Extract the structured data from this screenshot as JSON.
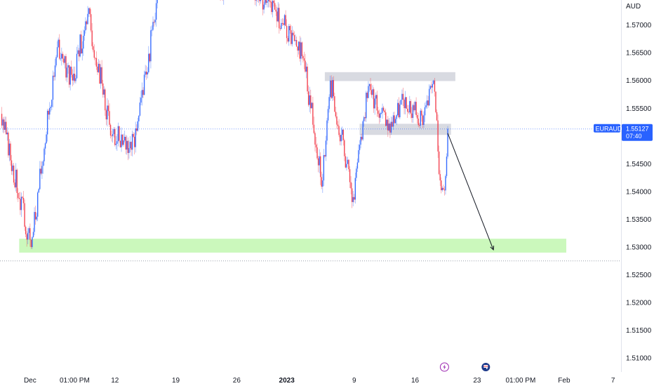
{
  "chart_data": {
    "type": "candlestick",
    "symbol": "EURAUD",
    "currency": "AUD",
    "ylim": [
      1.5075,
      1.5745
    ],
    "y_ticks": [
      "1.57000",
      "1.56500",
      "1.56000",
      "1.55500",
      "1.55000",
      "1.54500",
      "1.54000",
      "1.53500",
      "1.53000",
      "1.52500",
      "1.52000",
      "1.51500",
      "1.51000"
    ],
    "x_ticks": [
      {
        "label": "Dec",
        "bar": 27,
        "bold": false
      },
      {
        "label": "01:00 PM",
        "bar": 68,
        "bold": false
      },
      {
        "label": "12",
        "bar": 105,
        "bold": false
      },
      {
        "label": "19",
        "bar": 161,
        "bold": false
      },
      {
        "label": "26",
        "bar": 217,
        "bold": false
      },
      {
        "label": "2023",
        "bar": 263,
        "bold": true
      },
      {
        "label": "9",
        "bar": 325,
        "bold": false
      },
      {
        "label": "16",
        "bar": 381,
        "bold": false
      },
      {
        "label": "23",
        "bar": 438,
        "bold": false
      },
      {
        "label": "01:00 PM",
        "bar": 478,
        "bold": false
      },
      {
        "label": "Feb",
        "bar": 518,
        "bold": false
      },
      {
        "label": "7",
        "bar": 563,
        "bold": false
      }
    ],
    "last_price": {
      "label": "EURAUD",
      "value": 1.55127,
      "display": "1.55127",
      "countdown": "07:40"
    },
    "support_line": 1.5275,
    "zones": [
      {
        "name": "resistance-zone",
        "from_bar": 298,
        "to_bar": 418,
        "low": 1.5599,
        "high": 1.5615,
        "color": "#d1d4dc"
      },
      {
        "name": "mid-zone",
        "from_bar": 330,
        "to_bar": 414,
        "low": 1.5502,
        "high": 1.5522,
        "color": "#d1d4dc"
      },
      {
        "name": "target-zone",
        "from_bar": 17,
        "to_bar": 520,
        "low": 1.529,
        "high": 1.5315,
        "color": "#b9f6a6"
      }
    ],
    "arrow": {
      "from_bar": 411,
      "from_price": 1.5505,
      "to_bar": 453,
      "to_price": 1.5295
    },
    "events": [
      {
        "bar": 408,
        "icon": "lightning-icon",
        "color": "#9c27b0"
      },
      {
        "bar": 446,
        "icon": "flag-icon",
        "color": "#1e3a8a"
      }
    ],
    "bull_color": "#2962ff",
    "bear_color": "#f23645",
    "segments": [
      {
        "from_bar": 0,
        "to_bar": 28,
        "start": 1.554,
        "end": 1.53,
        "vol": 0.0022,
        "seed": 3
      },
      {
        "from_bar": 28,
        "to_bar": 52,
        "start": 1.53,
        "end": 1.566,
        "vol": 0.0024,
        "seed": 7
      },
      {
        "from_bar": 52,
        "to_bar": 66,
        "start": 1.566,
        "end": 1.56,
        "vol": 0.0022,
        "seed": 11
      },
      {
        "from_bar": 66,
        "to_bar": 80,
        "start": 1.56,
        "end": 1.572,
        "vol": 0.0024,
        "seed": 13
      },
      {
        "from_bar": 80,
        "to_bar": 102,
        "start": 1.572,
        "end": 1.55,
        "vol": 0.0024,
        "seed": 17
      },
      {
        "from_bar": 102,
        "to_bar": 123,
        "start": 1.55,
        "end": 1.548,
        "vol": 0.0024,
        "seed": 19
      },
      {
        "from_bar": 123,
        "to_bar": 145,
        "start": 1.548,
        "end": 1.576,
        "vol": 0.0024,
        "seed": 23
      },
      {
        "from_bar": 200,
        "to_bar": 213,
        "start": 1.576,
        "end": 1.576,
        "vol": 0.0018,
        "seed": 29
      },
      {
        "from_bar": 232,
        "to_bar": 244,
        "start": 1.576,
        "end": 1.574,
        "vol": 0.0018,
        "seed": 31
      },
      {
        "from_bar": 244,
        "to_bar": 260,
        "start": 1.574,
        "end": 1.57,
        "vol": 0.002,
        "seed": 37
      },
      {
        "from_bar": 260,
        "to_bar": 278,
        "start": 1.57,
        "end": 1.564,
        "vol": 0.0022,
        "seed": 41
      },
      {
        "from_bar": 278,
        "to_bar": 296,
        "start": 1.564,
        "end": 1.542,
        "vol": 0.0026,
        "seed": 43
      },
      {
        "from_bar": 296,
        "to_bar": 303,
        "start": 1.542,
        "end": 1.56,
        "vol": 0.002,
        "seed": 47
      },
      {
        "from_bar": 303,
        "to_bar": 324,
        "start": 1.56,
        "end": 1.539,
        "vol": 0.0022,
        "seed": 53
      },
      {
        "from_bar": 324,
        "to_bar": 338,
        "start": 1.539,
        "end": 1.559,
        "vol": 0.002,
        "seed": 59
      },
      {
        "from_bar": 338,
        "to_bar": 356,
        "start": 1.559,
        "end": 1.551,
        "vol": 0.002,
        "seed": 61
      },
      {
        "from_bar": 356,
        "to_bar": 372,
        "start": 1.551,
        "end": 1.557,
        "vol": 0.002,
        "seed": 67
      },
      {
        "from_bar": 372,
        "to_bar": 388,
        "start": 1.557,
        "end": 1.552,
        "vol": 0.002,
        "seed": 71
      },
      {
        "from_bar": 388,
        "to_bar": 398,
        "start": 1.552,
        "end": 1.56,
        "vol": 0.002,
        "seed": 73
      },
      {
        "from_bar": 398,
        "to_bar": 404,
        "start": 1.56,
        "end": 1.542,
        "vol": 0.002,
        "seed": 79
      },
      {
        "from_bar": 404,
        "to_bar": 408,
        "start": 1.542,
        "end": 1.5402,
        "vol": 0.0016,
        "seed": 83
      },
      {
        "from_bar": 408,
        "to_bar": 411,
        "start": 1.5402,
        "end": 1.5513,
        "vol": 0.0014,
        "seed": 89
      }
    ]
  }
}
